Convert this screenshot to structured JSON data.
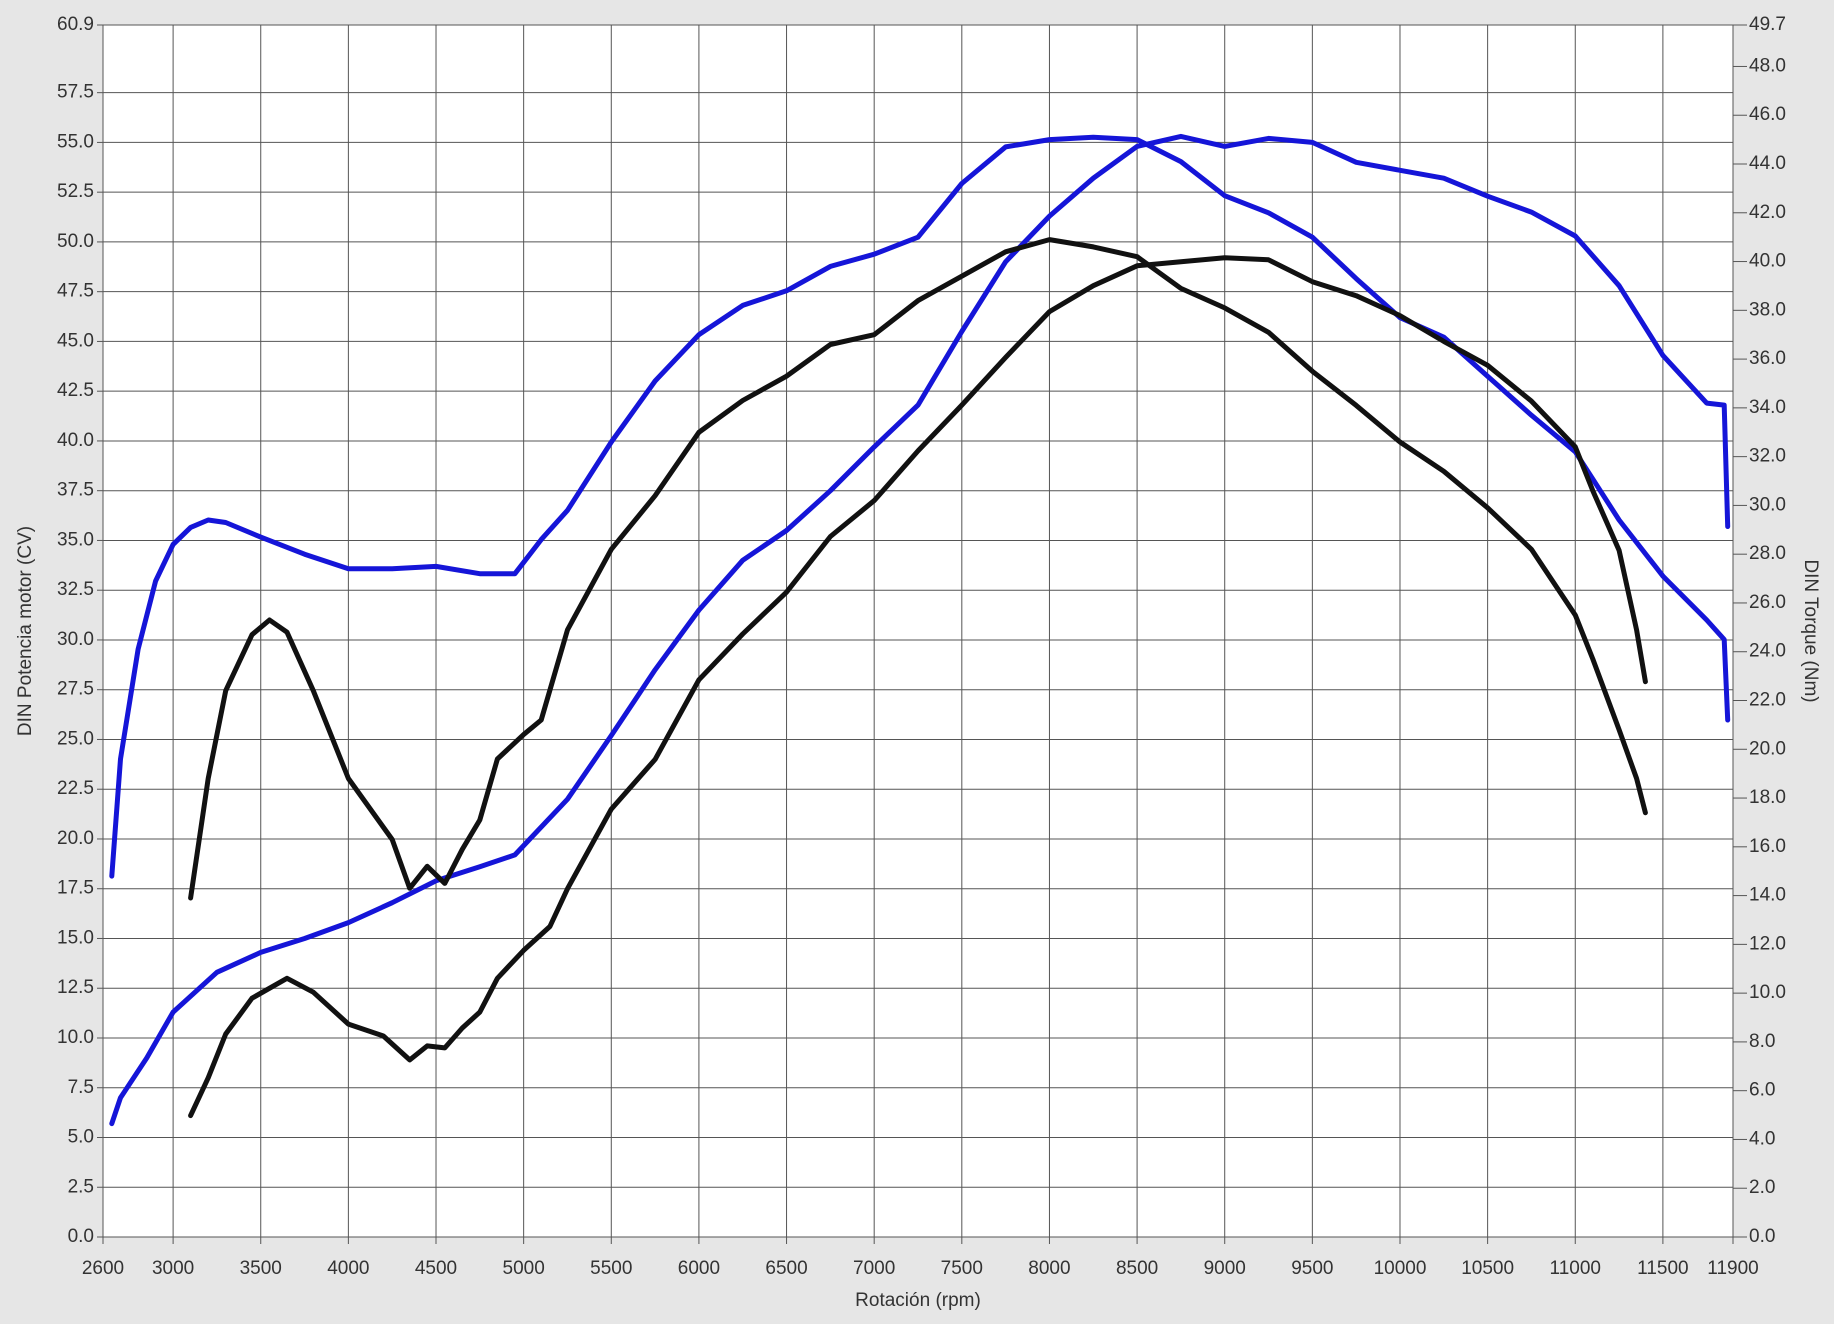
{
  "chart_data": {
    "type": "line",
    "xlabel": "Rotación (rpm)",
    "ylabel": "DIN Potencia motor (CV)",
    "y2label": "DIN Torque (Nm)",
    "xlim": [
      2600,
      11900
    ],
    "ylim": [
      0,
      60.9
    ],
    "y2lim": [
      0,
      49.7
    ],
    "grid": true,
    "xticks": [
      2600,
      3000,
      3500,
      4000,
      4500,
      5000,
      5500,
      6000,
      6500,
      7000,
      7500,
      8000,
      8500,
      9000,
      9500,
      10000,
      10500,
      11000,
      11500,
      11900
    ],
    "yticks": [
      {
        "value": 0,
        "label": "0.0"
      },
      2.5,
      {
        "value": 5,
        "label": "5.0"
      },
      7.5,
      {
        "value": 10,
        "label": "10.0"
      },
      12.5,
      {
        "value": 15,
        "label": "15.0"
      },
      17.5,
      {
        "value": 20,
        "label": "20.0"
      },
      22.5,
      {
        "value": 25,
        "label": "25.0"
      },
      27.5,
      {
        "value": 30,
        "label": "30.0"
      },
      32.5,
      {
        "value": 35,
        "label": "35.0"
      },
      37.5,
      {
        "value": 40,
        "label": "40.0"
      },
      42.5,
      {
        "value": 45,
        "label": "45.0"
      },
      47.5,
      {
        "value": 50,
        "label": "50.0"
      },
      52.5,
      {
        "value": 55,
        "label": "55.0"
      },
      57.5,
      60.9
    ],
    "y2ticks": [
      {
        "value": 0,
        "label": "0.0"
      },
      {
        "value": 2,
        "label": "2.0"
      },
      {
        "value": 4,
        "label": "4.0"
      },
      {
        "value": 6,
        "label": "6.0"
      },
      {
        "value": 8,
        "label": "8.0"
      },
      {
        "value": 10,
        "label": "10.0"
      },
      {
        "value": 12,
        "label": "12.0"
      },
      {
        "value": 14,
        "label": "14.0"
      },
      {
        "value": 16,
        "label": "16.0"
      },
      {
        "value": 18,
        "label": "18.0"
      },
      {
        "value": 20,
        "label": "20.0"
      },
      {
        "value": 22,
        "label": "22.0"
      },
      {
        "value": 24,
        "label": "24.0"
      },
      {
        "value": 26,
        "label": "26.0"
      },
      {
        "value": 28,
        "label": "28.0"
      },
      {
        "value": 30,
        "label": "30.0"
      },
      {
        "value": 32,
        "label": "32.0"
      },
      {
        "value": 34,
        "label": "34.0"
      },
      {
        "value": 36,
        "label": "36.0"
      },
      {
        "value": 38,
        "label": "38.0"
      },
      {
        "value": 40,
        "label": "40.0"
      },
      {
        "value": 42,
        "label": "42.0"
      },
      {
        "value": 44,
        "label": "44.0"
      },
      {
        "value": 46,
        "label": "46.0"
      },
      {
        "value": 48,
        "label": "48.0"
      },
      49.7
    ],
    "series": [
      {
        "color": "#1515d8",
        "axis": "y2",
        "x": [
          2650,
          2700,
          2800,
          2900,
          3000,
          3100,
          3200,
          3300,
          3500,
          3750,
          4000,
          4250,
          4500,
          4750,
          4950,
          5100,
          5250,
          5500,
          5750,
          6000,
          6250,
          6500,
          6750,
          7000,
          7250,
          7500,
          7750,
          8000,
          8250,
          8500,
          8750,
          9000,
          9250,
          9500,
          9750,
          10000,
          10250,
          10500,
          10750,
          11000,
          11250,
          11500,
          11750,
          11850,
          11870
        ],
        "values": [
          14.8,
          19.6,
          24.1,
          26.9,
          28.4,
          29.1,
          29.4,
          29.3,
          28.7,
          28.0,
          27.4,
          27.4,
          27.5,
          27.2,
          27.2,
          28.6,
          29.8,
          32.6,
          35.1,
          37.0,
          38.2,
          38.8,
          39.8,
          40.3,
          41.0,
          43.2,
          44.7,
          45.0,
          45.1,
          45.0,
          44.1,
          42.7,
          42.0,
          41.0,
          39.3,
          37.7,
          36.9,
          35.3,
          33.7,
          32.2,
          29.4,
          27.1,
          25.3,
          24.5,
          21.2
        ]
      },
      {
        "color": "#1515d8",
        "x": [
          2650,
          2700,
          2850,
          3000,
          3250,
          3500,
          3750,
          4000,
          4250,
          4500,
          4750,
          4950,
          5250,
          5500,
          5750,
          6000,
          6250,
          6500,
          6750,
          7000,
          7250,
          7500,
          7750,
          8000,
          8250,
          8500,
          8750,
          9000,
          9250,
          9500,
          9750,
          10000,
          10250,
          10500,
          10750,
          11000,
          11250,
          11500,
          11750,
          11850,
          11870
        ],
        "values": [
          5.7,
          7,
          9,
          11.3,
          13.3,
          14.3,
          15.0,
          15.8,
          16.8,
          17.9,
          18.6,
          19.2,
          22,
          25.2,
          28.5,
          31.5,
          34,
          35.5,
          37.5,
          39.7,
          41.8,
          45.5,
          49,
          51.3,
          53.2,
          54.8,
          55.3,
          54.8,
          55.2,
          55.0,
          54.0,
          53.6,
          53.2,
          52.3,
          51.5,
          50.3,
          47.8,
          44.3,
          41.9,
          41.8,
          35.7
        ]
      },
      {
        "color": "#111111",
        "axis": "y2",
        "x": [
          3100,
          3200,
          3300,
          3450,
          3550,
          3650,
          3800,
          4000,
          4250,
          4350,
          4450,
          4550,
          4650,
          4750,
          4850,
          5000,
          5100,
          5250,
          5500,
          5750,
          6000,
          6250,
          6500,
          6750,
          7000,
          7250,
          7500,
          7750,
          8000,
          8250,
          8500,
          8750,
          9000,
          9250,
          9500,
          9750,
          10000,
          10250,
          10500,
          10750,
          11000,
          11100,
          11250,
          11350,
          11400
        ],
        "values": [
          13.9,
          18.8,
          22.4,
          24.7,
          25.3,
          24.8,
          22.4,
          18.8,
          16.3,
          14.3,
          15.2,
          14.5,
          15.9,
          17.1,
          19.6,
          20.6,
          21.2,
          24.9,
          28.2,
          30.4,
          33.0,
          34.3,
          35.3,
          36.6,
          37.0,
          38.4,
          39.4,
          40.4,
          40.9,
          40.6,
          40.2,
          38.9,
          38.1,
          37.1,
          35.5,
          34.1,
          32.6,
          31.4,
          29.9,
          28.2,
          25.5,
          23.7,
          20.8,
          18.8,
          17.4
        ]
      },
      {
        "color": "#111111",
        "x": [
          3100,
          3200,
          3300,
          3450,
          3650,
          3800,
          4000,
          4200,
          4350,
          4450,
          4550,
          4650,
          4750,
          4850,
          5000,
          5150,
          5250,
          5500,
          5750,
          6000,
          6250,
          6500,
          6750,
          7000,
          7250,
          7500,
          7750,
          8000,
          8250,
          8500,
          8750,
          9000,
          9250,
          9500,
          9750,
          10000,
          10250,
          10500,
          10750,
          11000,
          11100,
          11250,
          11350,
          11400
        ],
        "values": [
          6.1,
          8,
          10.2,
          12,
          13,
          12.3,
          10.7,
          10.1,
          8.9,
          9.6,
          9.5,
          10.5,
          11.3,
          13,
          14.4,
          15.6,
          17.5,
          21.5,
          24,
          28,
          30.3,
          32.4,
          35.2,
          37,
          39.5,
          41.8,
          44.2,
          46.5,
          47.8,
          48.8,
          49,
          49.2,
          49.1,
          48,
          47.3,
          46.3,
          45,
          43.8,
          42,
          39.7,
          37.5,
          34.5,
          30.5,
          27.9
        ]
      }
    ]
  }
}
